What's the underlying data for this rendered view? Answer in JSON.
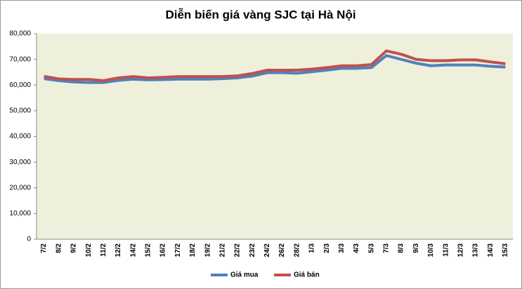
{
  "chart_data": {
    "type": "line",
    "title": "Diễn biến giá vàng SJC tại Hà Nội",
    "categories": [
      "7/2",
      "8/2",
      "9/2",
      "10/2",
      "11/2",
      "12/2",
      "14/2",
      "15/2",
      "16/2",
      "17/2",
      "18/2",
      "19/2",
      "21/2",
      "22/2",
      "23/2",
      "24/2",
      "26/2",
      "28/2",
      "1/3",
      "2/3",
      "3/3",
      "4/3",
      "5/3",
      "7/3",
      "8/3",
      "9/3",
      "10/3",
      "11/3",
      "12/3",
      "13/3",
      "14/3",
      "15/3"
    ],
    "series": [
      {
        "name": "Giá mua",
        "color": "#4f81bd",
        "values": [
          62500,
          61700,
          61200,
          61000,
          61000,
          61800,
          62300,
          62000,
          62100,
          62300,
          62300,
          62300,
          62500,
          62800,
          63500,
          64800,
          64800,
          64600,
          65200,
          65800,
          66500,
          66500,
          66800,
          71500,
          70000,
          68500,
          67500,
          67800,
          67800,
          67800,
          67300,
          67000
        ]
      },
      {
        "name": "Giá bán",
        "color": "#c0504d",
        "values": [
          63400,
          62400,
          62200,
          62200,
          61700,
          62800,
          63300,
          62800,
          63000,
          63300,
          63300,
          63300,
          63300,
          63600,
          64500,
          65800,
          65800,
          65800,
          66200,
          66800,
          67500,
          67500,
          68000,
          73300,
          72000,
          70000,
          69500,
          69500,
          69800,
          69800,
          69000,
          68300
        ]
      }
    ],
    "ylim": [
      0,
      80000
    ],
    "yticks": [
      0,
      {
        "value": 10000,
        "label": "10,000"
      },
      {
        "value": 20000,
        "label": "20,000"
      },
      {
        "value": 30000,
        "label": "30,000"
      },
      {
        "value": 40000,
        "label": "40,000"
      },
      {
        "value": 50000,
        "label": "50,000"
      },
      {
        "value": 60000,
        "label": "60,000"
      },
      {
        "value": 70000,
        "label": "70,000"
      },
      {
        "value": 80000,
        "label": "80,000"
      }
    ],
    "legend": "bottom",
    "plot_background": "#eef0dc"
  }
}
